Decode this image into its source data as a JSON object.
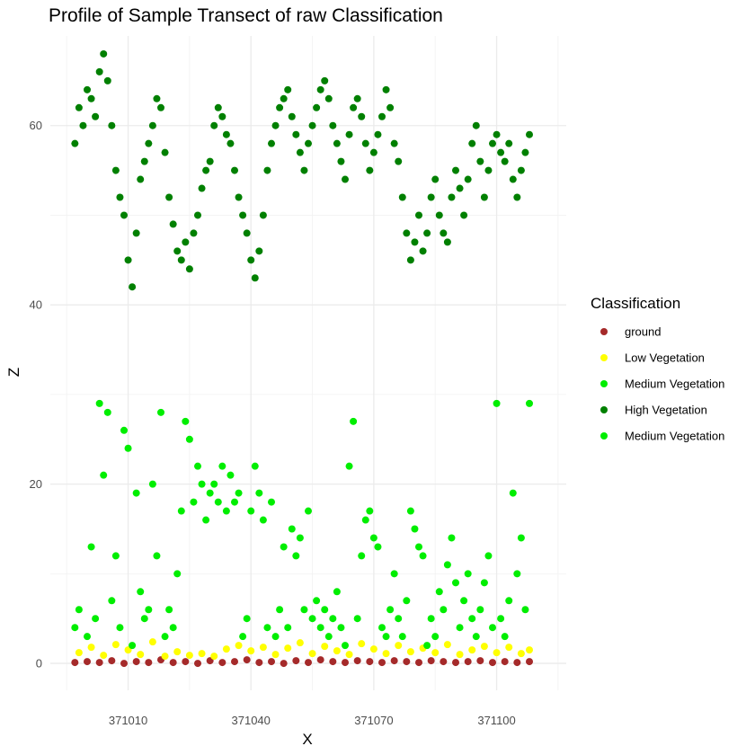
{
  "chart_data": {
    "type": "scatter",
    "title": "Profile of Sample Transect of raw Classification",
    "xlabel": "X",
    "ylabel": "Z",
    "xlim": [
      370991,
      371117
    ],
    "ylim": [
      -3,
      70
    ],
    "xticks": [
      371010,
      371040,
      371070,
      371100
    ],
    "xtick_labels": [
      "371010",
      "371040",
      "371070",
      "371100"
    ],
    "yticks": [
      0,
      20,
      40,
      60
    ],
    "ytick_labels": [
      "0",
      "20",
      "40",
      "60"
    ],
    "grid": true,
    "legend": {
      "title": "Classification",
      "placement": "right",
      "entries": [
        {
          "label": "ground",
          "color": "#a52a2a"
        },
        {
          "label": "Low Vegetation",
          "color": "#ffff00"
        },
        {
          "label": "Medium  Vegetation",
          "color": "#00ee00"
        },
        {
          "label": "High Vegetation",
          "color": "#008000"
        },
        {
          "label": "Medium  Vegetation",
          "color": "#00ee00"
        }
      ]
    },
    "series": [
      {
        "name": "ground",
        "color": "#a52a2a",
        "points": [
          [
            370997,
            0.1
          ],
          [
            371000,
            0.2
          ],
          [
            371003,
            0.1
          ],
          [
            371006,
            0.3
          ],
          [
            371009,
            0.0
          ],
          [
            371012,
            0.2
          ],
          [
            371015,
            0.1
          ],
          [
            371018,
            0.4
          ],
          [
            371021,
            0.1
          ],
          [
            371024,
            0.2
          ],
          [
            371027,
            0.0
          ],
          [
            371030,
            0.3
          ],
          [
            371033,
            0.1
          ],
          [
            371036,
            0.2
          ],
          [
            371039,
            0.4
          ],
          [
            371042,
            0.1
          ],
          [
            371045,
            0.2
          ],
          [
            371048,
            0.0
          ],
          [
            371051,
            0.3
          ],
          [
            371054,
            0.1
          ],
          [
            371057,
            0.4
          ],
          [
            371060,
            0.2
          ],
          [
            371063,
            0.1
          ],
          [
            371066,
            0.3
          ],
          [
            371069,
            0.2
          ],
          [
            371072,
            0.1
          ],
          [
            371075,
            0.3
          ],
          [
            371078,
            0.2
          ],
          [
            371081,
            0.1
          ],
          [
            371084,
            0.3
          ],
          [
            371087,
            0.2
          ],
          [
            371090,
            0.1
          ],
          [
            371093,
            0.2
          ],
          [
            371096,
            0.3
          ],
          [
            371099,
            0.1
          ],
          [
            371102,
            0.2
          ],
          [
            371105,
            0.1
          ],
          [
            371108,
            0.2
          ]
        ]
      },
      {
        "name": "Low Vegetation",
        "color": "#ffff00",
        "points": [
          [
            370998,
            1.2
          ],
          [
            371001,
            1.8
          ],
          [
            371004,
            0.9
          ],
          [
            371007,
            2.1
          ],
          [
            371010,
            1.5
          ],
          [
            371013,
            1.0
          ],
          [
            371016,
            2.4
          ],
          [
            371019,
            0.8
          ],
          [
            371022,
            1.3
          ],
          [
            371025,
            0.9
          ],
          [
            371028,
            1.1
          ],
          [
            371031,
            0.8
          ],
          [
            371034,
            1.6
          ],
          [
            371037,
            2.0
          ],
          [
            371040,
            1.4
          ],
          [
            371043,
            1.8
          ],
          [
            371046,
            1.0
          ],
          [
            371049,
            1.7
          ],
          [
            371052,
            2.3
          ],
          [
            371055,
            1.1
          ],
          [
            371058,
            1.9
          ],
          [
            371061,
            1.4
          ],
          [
            371064,
            1.0
          ],
          [
            371067,
            2.2
          ],
          [
            371070,
            1.6
          ],
          [
            371073,
            1.1
          ],
          [
            371076,
            2.0
          ],
          [
            371079,
            1.3
          ],
          [
            371082,
            1.7
          ],
          [
            371085,
            1.2
          ],
          [
            371088,
            2.1
          ],
          [
            371091,
            1.0
          ],
          [
            371094,
            1.5
          ],
          [
            371097,
            1.9
          ],
          [
            371100,
            1.2
          ],
          [
            371103,
            1.8
          ],
          [
            371106,
            1.1
          ],
          [
            371108,
            1.5
          ]
        ]
      },
      {
        "name": "Medium  Vegetation",
        "color": "#00ee00",
        "points": [
          [
            370997,
            4
          ],
          [
            370998,
            6
          ],
          [
            371000,
            3
          ],
          [
            371001,
            13
          ],
          [
            371002,
            5
          ],
          [
            371003,
            29
          ],
          [
            371004,
            21
          ],
          [
            371005,
            28
          ],
          [
            371006,
            7
          ],
          [
            371007,
            12
          ],
          [
            371008,
            4
          ],
          [
            371009,
            26
          ],
          [
            371010,
            24
          ],
          [
            371011,
            2
          ],
          [
            371012,
            19
          ],
          [
            371013,
            8
          ],
          [
            371014,
            5
          ],
          [
            371015,
            6
          ],
          [
            371016,
            20
          ],
          [
            371017,
            12
          ],
          [
            371018,
            28
          ],
          [
            371019,
            3
          ],
          [
            371020,
            6
          ],
          [
            371021,
            4
          ],
          [
            371022,
            10
          ],
          [
            371023,
            17
          ],
          [
            371024,
            27
          ],
          [
            371025,
            25
          ],
          [
            371026,
            18
          ],
          [
            371027,
            22
          ],
          [
            371028,
            20
          ],
          [
            371029,
            16
          ],
          [
            371030,
            19
          ],
          [
            371031,
            20
          ],
          [
            371032,
            18
          ],
          [
            371033,
            22
          ],
          [
            371034,
            17
          ],
          [
            371035,
            21
          ],
          [
            371036,
            18
          ],
          [
            371037,
            19
          ],
          [
            371038,
            3
          ],
          [
            371039,
            5
          ],
          [
            371040,
            17
          ],
          [
            371041,
            22
          ],
          [
            371042,
            19
          ],
          [
            371043,
            16
          ],
          [
            371044,
            4
          ],
          [
            371045,
            18
          ],
          [
            371046,
            3
          ],
          [
            371047,
            6
          ],
          [
            371048,
            13
          ],
          [
            371049,
            4
          ],
          [
            371050,
            15
          ],
          [
            371051,
            12
          ],
          [
            371052,
            14
          ],
          [
            371053,
            6
          ],
          [
            371054,
            17
          ],
          [
            371055,
            5
          ],
          [
            371056,
            7
          ],
          [
            371057,
            4
          ],
          [
            371058,
            6
          ],
          [
            371059,
            3
          ],
          [
            371060,
            5
          ],
          [
            371061,
            8
          ],
          [
            371062,
            4
          ],
          [
            371063,
            2
          ],
          [
            371064,
            22
          ],
          [
            371065,
            27
          ],
          [
            371066,
            5
          ],
          [
            371067,
            12
          ],
          [
            371068,
            16
          ],
          [
            371069,
            17
          ],
          [
            371070,
            14
          ],
          [
            371071,
            13
          ],
          [
            371072,
            4
          ],
          [
            371073,
            3
          ],
          [
            371074,
            6
          ],
          [
            371075,
            10
          ],
          [
            371076,
            5
          ],
          [
            371077,
            3
          ],
          [
            371078,
            7
          ],
          [
            371079,
            17
          ],
          [
            371080,
            15
          ],
          [
            371081,
            13
          ],
          [
            371082,
            12
          ],
          [
            371083,
            2
          ],
          [
            371084,
            5
          ],
          [
            371085,
            3
          ],
          [
            371086,
            8
          ],
          [
            371087,
            6
          ],
          [
            371088,
            11
          ],
          [
            371089,
            14
          ],
          [
            371090,
            9
          ],
          [
            371091,
            4
          ],
          [
            371092,
            7
          ],
          [
            371093,
            10
          ],
          [
            371094,
            5
          ],
          [
            371095,
            3
          ],
          [
            371096,
            6
          ],
          [
            371097,
            9
          ],
          [
            371098,
            12
          ],
          [
            371099,
            4
          ],
          [
            371100,
            29
          ],
          [
            371101,
            5
          ],
          [
            371102,
            3
          ],
          [
            371103,
            7
          ],
          [
            371104,
            19
          ],
          [
            371105,
            10
          ],
          [
            371106,
            14
          ],
          [
            371107,
            6
          ],
          [
            371108,
            29
          ]
        ]
      },
      {
        "name": "High Vegetation",
        "color": "#008000",
        "points": [
          [
            370997,
            58
          ],
          [
            370998,
            62
          ],
          [
            370999,
            60
          ],
          [
            371000,
            64
          ],
          [
            371001,
            63
          ],
          [
            371002,
            61
          ],
          [
            371003,
            66
          ],
          [
            371004,
            68
          ],
          [
            371005,
            65
          ],
          [
            371006,
            60
          ],
          [
            371007,
            55
          ],
          [
            371008,
            52
          ],
          [
            371009,
            50
          ],
          [
            371010,
            45
          ],
          [
            371011,
            42
          ],
          [
            371012,
            48
          ],
          [
            371013,
            54
          ],
          [
            371014,
            56
          ],
          [
            371015,
            58
          ],
          [
            371016,
            60
          ],
          [
            371017,
            63
          ],
          [
            371018,
            62
          ],
          [
            371019,
            57
          ],
          [
            371020,
            52
          ],
          [
            371021,
            49
          ],
          [
            371022,
            46
          ],
          [
            371023,
            45
          ],
          [
            371024,
            47
          ],
          [
            371025,
            44
          ],
          [
            371026,
            48
          ],
          [
            371027,
            50
          ],
          [
            371028,
            53
          ],
          [
            371029,
            55
          ],
          [
            371030,
            56
          ],
          [
            371031,
            60
          ],
          [
            371032,
            62
          ],
          [
            371033,
            61
          ],
          [
            371034,
            59
          ],
          [
            371035,
            58
          ],
          [
            371036,
            55
          ],
          [
            371037,
            52
          ],
          [
            371038,
            50
          ],
          [
            371039,
            48
          ],
          [
            371040,
            45
          ],
          [
            371041,
            43
          ],
          [
            371042,
            46
          ],
          [
            371043,
            50
          ],
          [
            371044,
            55
          ],
          [
            371045,
            58
          ],
          [
            371046,
            60
          ],
          [
            371047,
            62
          ],
          [
            371048,
            63
          ],
          [
            371049,
            64
          ],
          [
            371050,
            61
          ],
          [
            371051,
            59
          ],
          [
            371052,
            57
          ],
          [
            371053,
            55
          ],
          [
            371054,
            58
          ],
          [
            371055,
            60
          ],
          [
            371056,
            62
          ],
          [
            371057,
            64
          ],
          [
            371058,
            65
          ],
          [
            371059,
            63
          ],
          [
            371060,
            60
          ],
          [
            371061,
            58
          ],
          [
            371062,
            56
          ],
          [
            371063,
            54
          ],
          [
            371064,
            59
          ],
          [
            371065,
            62
          ],
          [
            371066,
            63
          ],
          [
            371067,
            61
          ],
          [
            371068,
            58
          ],
          [
            371069,
            55
          ],
          [
            371070,
            57
          ],
          [
            371071,
            59
          ],
          [
            371072,
            61
          ],
          [
            371073,
            64
          ],
          [
            371074,
            62
          ],
          [
            371075,
            58
          ],
          [
            371076,
            56
          ],
          [
            371077,
            52
          ],
          [
            371078,
            48
          ],
          [
            371079,
            45
          ],
          [
            371080,
            47
          ],
          [
            371081,
            50
          ],
          [
            371082,
            46
          ],
          [
            371083,
            48
          ],
          [
            371084,
            52
          ],
          [
            371085,
            54
          ],
          [
            371086,
            50
          ],
          [
            371087,
            48
          ],
          [
            371088,
            47
          ],
          [
            371089,
            52
          ],
          [
            371090,
            55
          ],
          [
            371091,
            53
          ],
          [
            371092,
            50
          ],
          [
            371093,
            54
          ],
          [
            371094,
            58
          ],
          [
            371095,
            60
          ],
          [
            371096,
            56
          ],
          [
            371097,
            52
          ],
          [
            371098,
            55
          ],
          [
            371099,
            58
          ],
          [
            371100,
            59
          ],
          [
            371101,
            57
          ],
          [
            371102,
            56
          ],
          [
            371103,
            58
          ],
          [
            371104,
            54
          ],
          [
            371105,
            52
          ],
          [
            371106,
            55
          ],
          [
            371107,
            57
          ],
          [
            371108,
            59
          ]
        ]
      }
    ]
  }
}
